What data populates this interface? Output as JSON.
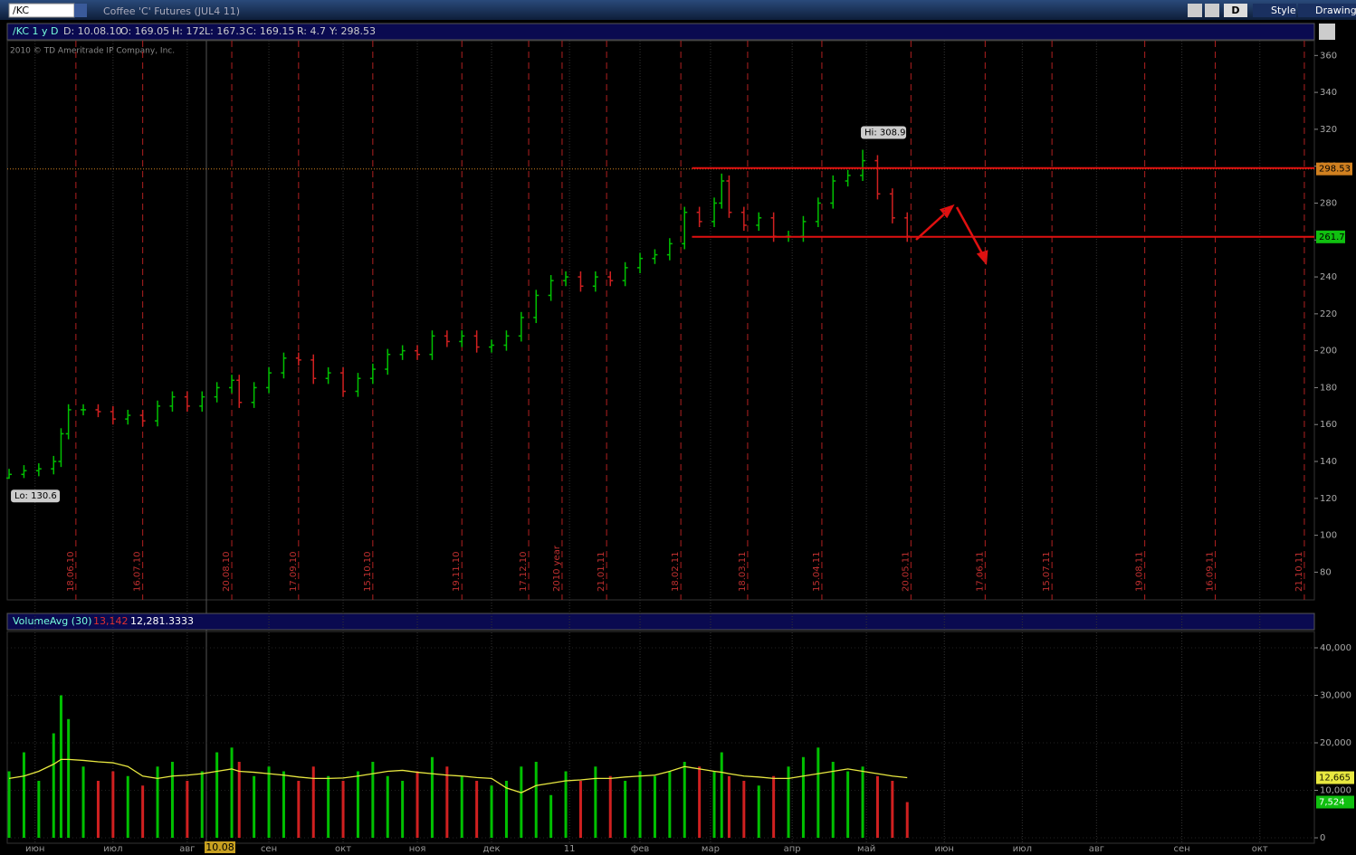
{
  "toolbar": {
    "symbol": "/KC",
    "description": "Coffee 'C' Futures (JUL4 11)",
    "aggregation": "D",
    "style": "Style",
    "drawings": "Drawings"
  },
  "info_bar": {
    "study": "/KC 1 y D",
    "date": "D: 10.08.10",
    "open": "O: 169.05",
    "high": "H: 172",
    "low": "L: 167.3",
    "close": "C: 169.15",
    "range": "R: 4.7",
    "last": "Y: 298.53"
  },
  "copyright": "2010 © TD Ameritrade IP Company, Inc.",
  "cursor_date": "10.08",
  "chart_data": [
    {
      "type": "candlestick",
      "up_color": "#00c000",
      "down_color": "#d02020",
      "x": [
        0,
        4,
        8,
        12,
        14,
        16,
        20,
        24,
        28,
        32,
        36,
        40,
        44,
        48,
        52,
        56,
        60,
        62,
        66,
        70,
        74,
        78,
        82,
        86,
        90,
        94,
        98,
        102,
        106,
        110,
        114,
        118,
        122,
        126,
        130,
        134,
        138,
        142,
        146,
        150,
        154,
        158,
        162,
        166,
        170,
        174,
        178,
        182,
        186,
        190,
        192,
        194,
        198,
        202,
        206,
        210,
        214,
        218,
        222,
        226,
        230,
        234,
        238,
        242
      ],
      "open": [
        131,
        133,
        135,
        136,
        140,
        155,
        168,
        168,
        167,
        163,
        165,
        162,
        170,
        175,
        170,
        175,
        180,
        184,
        172,
        180,
        188,
        196,
        195,
        185,
        188,
        178,
        185,
        190,
        198,
        200,
        198,
        208,
        205,
        208,
        202,
        203,
        208,
        218,
        230,
        238,
        240,
        235,
        240,
        238,
        245,
        250,
        252,
        258,
        275,
        270,
        280,
        292,
        275,
        268,
        272,
        262,
        262,
        270,
        280,
        292,
        295,
        303,
        285,
        272
      ],
      "high": [
        136,
        138,
        139,
        143,
        158,
        171,
        171,
        171,
        170,
        168,
        168,
        173,
        178,
        178,
        178,
        183,
        187,
        187,
        183,
        191,
        199,
        199,
        198,
        191,
        191,
        188,
        193,
        201,
        203,
        203,
        211,
        211,
        211,
        211,
        206,
        211,
        221,
        233,
        241,
        243,
        243,
        243,
        243,
        248,
        253,
        255,
        261,
        278,
        278,
        283,
        296,
        295,
        278,
        275,
        275,
        265,
        273,
        283,
        295,
        298,
        308.9,
        306,
        288,
        275
      ],
      "low": [
        130.6,
        131,
        132,
        133,
        137,
        152,
        165,
        164,
        160,
        160,
        159,
        159,
        167,
        167,
        167,
        172,
        177,
        169,
        169,
        177,
        185,
        192,
        182,
        182,
        175,
        175,
        182,
        187,
        195,
        195,
        195,
        202,
        202,
        199,
        199,
        200,
        205,
        215,
        227,
        235,
        232,
        232,
        235,
        235,
        242,
        247,
        249,
        255,
        267,
        267,
        277,
        272,
        265,
        265,
        259,
        259,
        259,
        267,
        277,
        289,
        292,
        282,
        269,
        259
      ],
      "close": [
        133,
        135,
        136,
        140,
        155,
        168,
        168,
        167,
        163,
        165,
        162,
        170,
        175,
        170,
        175,
        180,
        184,
        172,
        180,
        188,
        196,
        195,
        185,
        188,
        178,
        185,
        190,
        198,
        200,
        198,
        208,
        205,
        208,
        202,
        203,
        208,
        218,
        230,
        238,
        240,
        235,
        240,
        238,
        245,
        250,
        252,
        258,
        275,
        270,
        280,
        292,
        275,
        268,
        272,
        262,
        262,
        270,
        280,
        292,
        295,
        303,
        285,
        272,
        262
      ],
      "xlim": [
        -0.5,
        351.7
      ],
      "ylim": [
        65,
        368
      ],
      "yticks": [
        80,
        100,
        120,
        140,
        160,
        180,
        200,
        220,
        240,
        260,
        280,
        300,
        320,
        340,
        360
      ],
      "high_label": "Hi: 308.9",
      "low_label": "Lo: 130.6",
      "date_markers": {
        "x": [
          18,
          36,
          60,
          78,
          98,
          122,
          140,
          149,
          161,
          181,
          199,
          219,
          243,
          263,
          281,
          306,
          325,
          349
        ],
        "labels": [
          "18.06.10",
          "16.07.10",
          "20.08.10",
          "17.09.10",
          "15.10.10",
          "19.11.10",
          "17.12.10",
          "2010 year",
          "21.01.11",
          "18.02.11",
          "18.03.11",
          "15.04.11",
          "20.05.11",
          "17.06.11",
          "15.07.11",
          "19.08.11",
          "16.09.11",
          "21.10.11"
        ]
      },
      "months": {
        "x": [
          7,
          28,
          48,
          70,
          90,
          110,
          130,
          151,
          170,
          189,
          211,
          231,
          252,
          273,
          293,
          316,
          337
        ],
        "labels": [
          "июн",
          "июл",
          "авг",
          "сен",
          "окт",
          "ноя",
          "дек",
          "11",
          "фев",
          "мар",
          "апр",
          "май",
          "июн",
          "июл",
          "авг",
          "сен",
          "окт"
        ]
      },
      "price_line": {
        "value": 298.53,
        "color": "#d08020"
      },
      "levels": {
        "start": 184,
        "values": [
          299,
          261.7
        ],
        "tag": [
          false,
          true
        ],
        "color": "#e01010",
        "tag_color": "#10c010"
      }
    },
    {
      "type": "bar",
      "title": "VolumeAvg (30)",
      "readouts": [
        "13,142",
        "12,281.3333"
      ],
      "x": [
        0,
        4,
        8,
        12,
        14,
        16,
        20,
        24,
        28,
        32,
        36,
        40,
        44,
        48,
        52,
        56,
        60,
        62,
        66,
        70,
        74,
        78,
        82,
        86,
        90,
        94,
        98,
        102,
        106,
        110,
        114,
        118,
        122,
        126,
        130,
        134,
        138,
        142,
        146,
        150,
        154,
        158,
        162,
        166,
        170,
        174,
        178,
        182,
        186,
        190,
        192,
        194,
        198,
        202,
        206,
        210,
        214,
        218,
        222,
        226,
        230,
        234,
        238,
        242
      ],
      "volume": {
        "values": [
          14000,
          18000,
          12000,
          22000,
          30000,
          25000,
          15000,
          12000,
          14000,
          13000,
          11000,
          15000,
          16000,
          12000,
          14000,
          18000,
          19000,
          16000,
          13000,
          15000,
          14000,
          12000,
          15000,
          13000,
          12000,
          14000,
          16000,
          13000,
          12000,
          14000,
          17000,
          15000,
          13000,
          12000,
          11000,
          12000,
          15000,
          16000,
          9000,
          14000,
          12000,
          15000,
          13000,
          12000,
          14000,
          13000,
          14000,
          16000,
          15000,
          14000,
          18000,
          13000,
          12000,
          11000,
          13000,
          15000,
          17000,
          19000,
          16000,
          14000,
          15000,
          13000,
          12000,
          7524
        ],
        "last_label": "7,524",
        "color": "#10c010"
      },
      "average": {
        "values": [
          12500,
          13000,
          14000,
          15500,
          16500,
          16500,
          16300,
          16000,
          15800,
          15000,
          13000,
          12500,
          13000,
          13200,
          13500,
          14000,
          14500,
          14000,
          13800,
          13500,
          13200,
          12800,
          12500,
          12500,
          12600,
          13000,
          13500,
          14000,
          14200,
          13800,
          13500,
          13200,
          13000,
          12700,
          12500,
          10500,
          9500,
          11000,
          11500,
          12000,
          12200,
          12500,
          12500,
          12800,
          13000,
          13200,
          14000,
          15000,
          14500,
          14000,
          13800,
          13500,
          13000,
          12800,
          12500,
          12500,
          13000,
          13500,
          14000,
          14500,
          14000,
          13500,
          13000,
          12665
        ],
        "last_label": "12,665",
        "color": "#e8e840"
      },
      "ylim": [
        -1140,
        43430
      ],
      "yticks": [
        0,
        {
          "value": 10000,
          "label": "10,000"
        },
        {
          "value": 20000,
          "label": "20,000"
        },
        {
          "value": 30000,
          "label": "30,000"
        },
        {
          "value": 40000,
          "label": "40,000"
        }
      ]
    }
  ]
}
